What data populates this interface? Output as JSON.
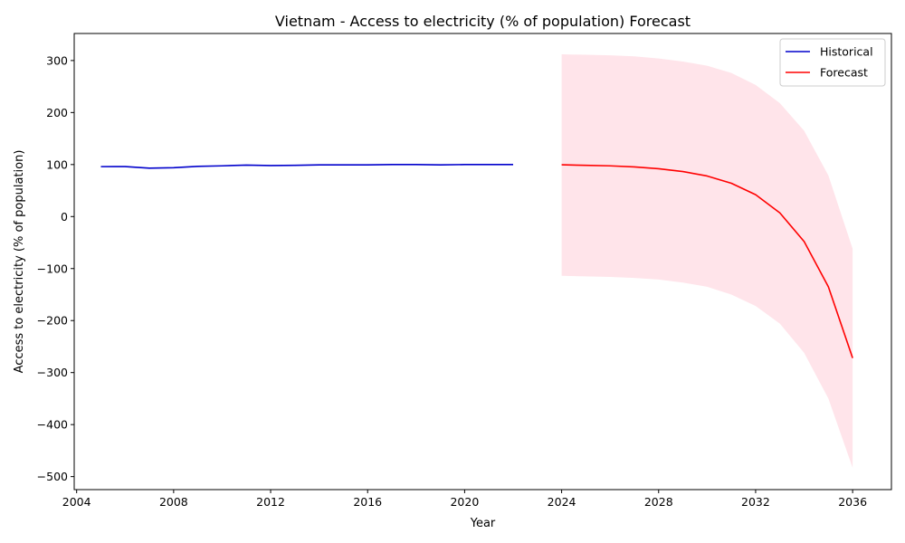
{
  "chart_data": {
    "type": "line",
    "title": "Vietnam - Access to electricity (% of population) Forecast",
    "xlabel": "Year",
    "ylabel": "Access to electricity (% of population)",
    "xlim": [
      2003.9,
      2037.6
    ],
    "ylim": [
      -525,
      352
    ],
    "x_ticks": [
      2004,
      2008,
      2012,
      2016,
      2020,
      2024,
      2028,
      2032,
      2036
    ],
    "y_ticks": [
      -500,
      -400,
      -300,
      -200,
      -100,
      0,
      100,
      200,
      300
    ],
    "grid": false,
    "legend_position": "top-right",
    "series": [
      {
        "name": "Historical",
        "color": "#0000cc",
        "x": [
          2005,
          2006,
          2007,
          2008,
          2009,
          2010,
          2011,
          2012,
          2013,
          2014,
          2015,
          2016,
          2017,
          2018,
          2019,
          2020,
          2021,
          2022
        ],
        "y": [
          96.0,
          96.1,
          93.0,
          94.0,
          96.5,
          97.5,
          99.0,
          98.0,
          98.5,
          99.3,
          99.4,
          99.3,
          100.0,
          100.0,
          99.4,
          100.0,
          100.0,
          100.0
        ]
      },
      {
        "name": "Forecast",
        "color": "#ff0000",
        "x": [
          2024,
          2025,
          2026,
          2027,
          2028,
          2029,
          2030,
          2031,
          2032,
          2033,
          2034,
          2035,
          2036
        ],
        "y": [
          99.5,
          98.5,
          97.5,
          95.5,
          92.0,
          86.5,
          78.0,
          64.0,
          42.0,
          7.0,
          -48.0,
          -135.0,
          -272.0
        ],
        "interval": {
          "color": "#ffe4ea",
          "upper": [
            312,
            311,
            310,
            308,
            304,
            298,
            290,
            276,
            253,
            218,
            165,
            79,
            -62
          ],
          "lower": [
            -114,
            -115,
            -116,
            -118,
            -121,
            -127,
            -135,
            -150,
            -172,
            -206,
            -262,
            -350,
            -483
          ]
        }
      }
    ]
  }
}
